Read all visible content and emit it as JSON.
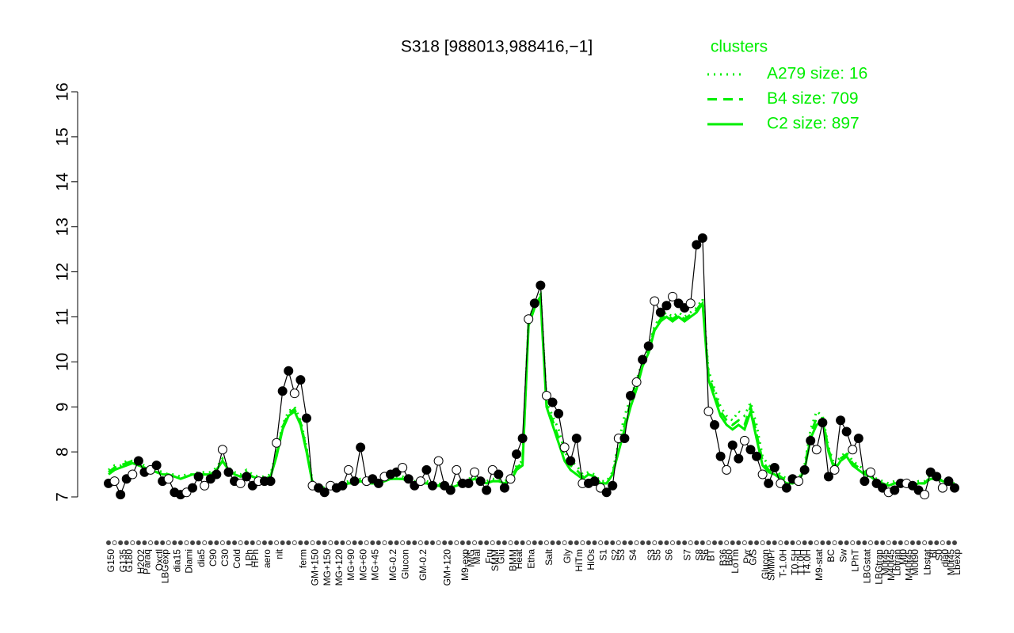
{
  "chart_data": {
    "type": "line",
    "title": "S318 [988013,988416,−1]",
    "legend_title": "clusters",
    "legend_position": "top-right",
    "ylim": [
      7,
      16
    ],
    "yticks": [
      7,
      8,
      9,
      10,
      11,
      12,
      13,
      14,
      15,
      16
    ],
    "categories": [
      "G150",
      null,
      "G135",
      "G180",
      null,
      "H2O2",
      "Paraq",
      null,
      "Oxctl",
      "LBGexp",
      null,
      "dia15",
      null,
      "Diami",
      null,
      "dia5",
      null,
      "C90",
      null,
      "C30",
      null,
      "Cold",
      null,
      "LPh",
      "HPh",
      null,
      "aero",
      null,
      "nit",
      null,
      null,
      null,
      "ferm",
      null,
      "GM+150",
      null,
      "MG+150",
      null,
      "MG+120",
      null,
      "MG+90",
      null,
      "MG+60",
      null,
      "MG+45",
      null,
      null,
      "MG-0.2",
      null,
      "Glucon",
      null,
      null,
      "GM-0.2",
      null,
      null,
      null,
      "GM+120",
      null,
      null,
      "M9-exp",
      "M/G",
      "Mal",
      null,
      "Fru",
      "SMM",
      "Glu",
      null,
      "BMM",
      "Heat",
      null,
      "Etha",
      null,
      null,
      "Salt",
      null,
      null,
      "Gly",
      null,
      "HiTm",
      null,
      "HiOs",
      null,
      "S1",
      null,
      "S2",
      "S3",
      null,
      "S4",
      null,
      null,
      "S3",
      "S5",
      null,
      "S6",
      null,
      null,
      "S7",
      null,
      "S8",
      "S6",
      "BT",
      null,
      "B36",
      "B60",
      "LoTm",
      null,
      "Pyr",
      "G/S",
      null,
      "Glucon",
      "SMMPr",
      null,
      "T-1.0H",
      null,
      "T0.5H",
      "T1.0H",
      "T4.0H",
      null,
      "M9-stat",
      null,
      "BC",
      null,
      "Sw",
      null,
      "LPhT",
      null,
      "LBGstat",
      null,
      "LBGtran",
      "M0t45",
      "M40t45",
      "Lbtran",
      "Mt0",
      "M40t45",
      "M0t90",
      null,
      "Lbstat",
      "BI",
      "S0",
      "dia0",
      "M0t45",
      "Lbexp"
    ],
    "values": [
      7.3,
      7.35,
      7.05,
      7.4,
      7.5,
      7.8,
      7.55,
      7.6,
      7.7,
      7.35,
      7.4,
      7.1,
      7.05,
      7.1,
      7.2,
      7.45,
      7.25,
      7.4,
      7.5,
      8.05,
      7.55,
      7.35,
      7.3,
      7.45,
      7.25,
      7.35,
      7.35,
      7.35,
      8.2,
      9.35,
      9.8,
      9.3,
      9.6,
      8.75,
      7.25,
      7.2,
      7.1,
      7.25,
      7.2,
      7.25,
      7.6,
      7.35,
      8.1,
      7.35,
      7.4,
      7.3,
      7.45,
      7.5,
      7.55,
      7.65,
      7.4,
      7.25,
      7.35,
      7.6,
      7.25,
      7.8,
      7.25,
      7.15,
      7.6,
      7.3,
      7.3,
      7.55,
      7.35,
      7.15,
      7.6,
      7.5,
      7.2,
      7.4,
      7.95,
      8.3,
      10.95,
      11.3,
      11.7,
      9.25,
      9.1,
      8.85,
      8.1,
      7.8,
      8.3,
      7.3,
      7.3,
      7.35,
      7.2,
      7.1,
      7.25,
      8.3,
      8.3,
      9.25,
      9.55,
      10.05,
      10.35,
      11.35,
      11.1,
      11.25,
      11.45,
      11.3,
      11.2,
      11.3,
      12.6,
      12.75,
      8.9,
      8.6,
      7.9,
      7.6,
      8.15,
      7.85,
      8.25,
      8.05,
      7.9,
      7.5,
      7.3,
      7.65,
      7.3,
      7.2,
      7.4,
      7.35,
      7.6,
      8.25,
      8.05,
      8.65,
      7.45,
      7.6,
      8.7,
      8.45,
      8.05,
      8.3,
      7.35,
      7.55,
      7.3,
      7.2,
      7.1,
      7.15,
      7.3,
      7.3,
      7.25,
      7.15,
      7.05,
      7.55,
      7.45,
      7.2,
      7.35,
      7.2
    ],
    "point_color": "#000000",
    "series": [
      {
        "name": "A279 size: 16",
        "color": "#00ee00",
        "dash": "dotted",
        "values": [
          7.6,
          7.7,
          7.7,
          7.8,
          7.8,
          7.75,
          7.7,
          7.6,
          7.6,
          7.55,
          7.5,
          7.5,
          7.45,
          7.5,
          7.5,
          7.55,
          7.55,
          7.55,
          7.65,
          7.85,
          7.65,
          7.55,
          7.5,
          7.6,
          7.5,
          7.45,
          7.45,
          7.5,
          8.0,
          8.6,
          8.9,
          9.0,
          8.7,
          8.1,
          7.35,
          7.25,
          7.2,
          7.25,
          7.25,
          7.3,
          7.35,
          7.35,
          7.4,
          7.35,
          7.35,
          7.35,
          7.4,
          7.45,
          7.45,
          7.45,
          7.4,
          7.35,
          7.35,
          7.35,
          7.3,
          7.3,
          7.25,
          7.25,
          7.3,
          7.35,
          7.4,
          7.45,
          7.4,
          7.35,
          7.4,
          7.4,
          7.35,
          7.4,
          7.7,
          7.8,
          10.9,
          11.3,
          11.5,
          9.1,
          8.8,
          8.5,
          8.0,
          7.8,
          7.7,
          7.5,
          7.55,
          7.5,
          7.35,
          7.35,
          7.55,
          8.2,
          8.8,
          9.2,
          9.6,
          10.0,
          10.3,
          10.8,
          11.0,
          11.1,
          11.0,
          11.1,
          11.0,
          11.1,
          11.2,
          11.4,
          9.8,
          9.4,
          9.0,
          8.8,
          8.7,
          8.9,
          8.8,
          9.1,
          8.6,
          7.9,
          7.7,
          7.6,
          7.5,
          7.4,
          7.35,
          7.4,
          7.7,
          8.5,
          8.9,
          8.8,
          8.1,
          7.7,
          7.9,
          8.0,
          7.8,
          7.7,
          7.6,
          7.5,
          7.4,
          7.35,
          7.3,
          7.35,
          7.35,
          7.35,
          7.3,
          7.35,
          7.35,
          7.5,
          7.45,
          7.4,
          7.35,
          7.35
        ]
      },
      {
        "name": "B4 size: 709",
        "color": "#00ee00",
        "dash": "dashed",
        "values": [
          7.55,
          7.65,
          7.7,
          7.75,
          7.8,
          7.7,
          7.65,
          7.6,
          7.55,
          7.5,
          7.5,
          7.45,
          7.4,
          7.45,
          7.5,
          7.5,
          7.5,
          7.5,
          7.6,
          7.8,
          7.6,
          7.5,
          7.45,
          7.55,
          7.45,
          7.4,
          7.4,
          7.45,
          7.95,
          8.55,
          8.85,
          8.95,
          8.65,
          8.05,
          7.3,
          7.2,
          7.15,
          7.2,
          7.2,
          7.25,
          7.3,
          7.3,
          7.35,
          7.3,
          7.3,
          7.3,
          7.35,
          7.4,
          7.4,
          7.4,
          7.35,
          7.3,
          7.3,
          7.3,
          7.25,
          7.25,
          7.2,
          7.2,
          7.25,
          7.3,
          7.35,
          7.4,
          7.35,
          7.3,
          7.35,
          7.35,
          7.3,
          7.35,
          7.65,
          7.75,
          10.85,
          11.25,
          11.45,
          9.05,
          8.7,
          8.3,
          7.9,
          7.7,
          7.6,
          7.45,
          7.5,
          7.45,
          7.3,
          7.3,
          7.5,
          8.1,
          8.6,
          9.1,
          9.5,
          9.95,
          10.25,
          10.75,
          10.95,
          11.05,
          10.95,
          11.05,
          10.95,
          11.05,
          11.15,
          11.35,
          9.7,
          9.3,
          8.9,
          8.7,
          8.6,
          8.7,
          8.6,
          9.0,
          8.4,
          7.8,
          7.6,
          7.55,
          7.45,
          7.35,
          7.3,
          7.35,
          7.65,
          8.4,
          8.75,
          8.75,
          8.05,
          7.65,
          7.85,
          7.95,
          7.75,
          7.65,
          7.55,
          7.45,
          7.35,
          7.3,
          7.25,
          7.3,
          7.3,
          7.3,
          7.25,
          7.3,
          7.3,
          7.45,
          7.45,
          7.35,
          7.3,
          7.3
        ]
      },
      {
        "name": "C2 size: 897",
        "color": "#00ee00",
        "dash": "solid",
        "values": [
          7.5,
          7.6,
          7.65,
          7.7,
          7.75,
          7.7,
          7.65,
          7.6,
          7.55,
          7.5,
          7.5,
          7.45,
          7.4,
          7.45,
          7.5,
          7.5,
          7.5,
          7.5,
          7.6,
          7.8,
          7.6,
          7.5,
          7.45,
          7.5,
          7.45,
          7.4,
          7.4,
          7.45,
          7.9,
          8.5,
          8.8,
          8.9,
          8.6,
          8.0,
          7.3,
          7.2,
          7.15,
          7.2,
          7.2,
          7.25,
          7.3,
          7.3,
          7.35,
          7.3,
          7.3,
          7.3,
          7.35,
          7.4,
          7.4,
          7.4,
          7.35,
          7.3,
          7.3,
          7.3,
          7.25,
          7.25,
          7.2,
          7.2,
          7.25,
          7.3,
          7.35,
          7.4,
          7.35,
          7.3,
          7.35,
          7.35,
          7.3,
          7.35,
          7.6,
          7.7,
          10.8,
          11.2,
          11.4,
          9.0,
          8.6,
          8.2,
          7.8,
          7.6,
          7.5,
          7.4,
          7.5,
          7.45,
          7.3,
          7.3,
          7.5,
          8.0,
          8.5,
          9.0,
          9.4,
          9.9,
          10.2,
          10.7,
          10.9,
          11.0,
          10.9,
          11.0,
          10.9,
          11.0,
          11.1,
          11.3,
          9.6,
          9.2,
          8.8,
          8.6,
          8.5,
          8.6,
          8.5,
          8.9,
          8.3,
          7.7,
          7.55,
          7.5,
          7.4,
          7.3,
          7.3,
          7.35,
          7.6,
          8.3,
          8.6,
          8.7,
          8.0,
          7.6,
          7.8,
          7.9,
          7.7,
          7.6,
          7.5,
          7.45,
          7.35,
          7.3,
          7.25,
          7.3,
          7.3,
          7.3,
          7.25,
          7.3,
          7.3,
          7.4,
          7.4,
          7.35,
          7.3,
          7.3
        ]
      }
    ]
  }
}
